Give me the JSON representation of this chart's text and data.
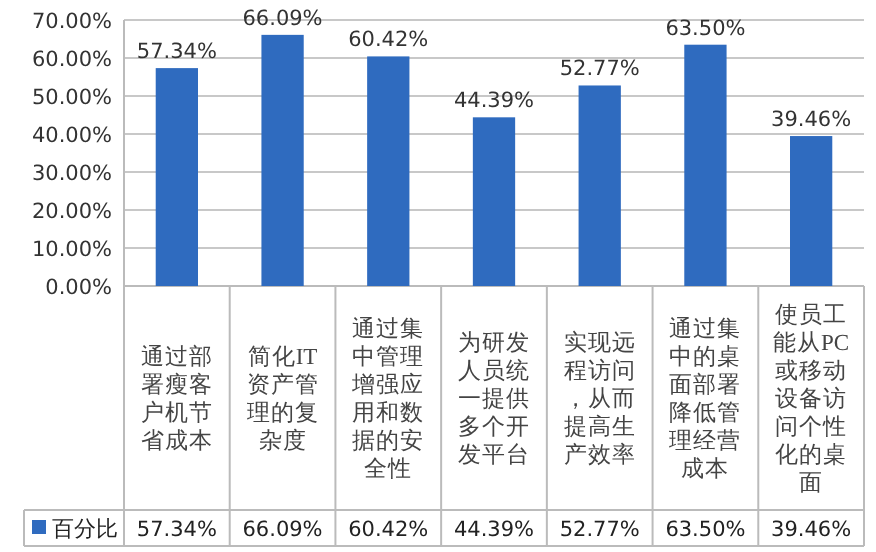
{
  "chart_data": {
    "type": "bar",
    "categories": [
      "通过部署瘦客户机节省成本",
      "简化IT资产管理的复杂度",
      "通过集中管理增强应用和数据的安全性",
      "为研发人员统一提供多个开发平台",
      "实现远程访问，从而提高生产效率",
      "通过集中的桌面部署降低管理经营成本",
      "使员工能从PC或移动设备访问个性化的桌面"
    ],
    "series": [
      {
        "name": "百分比",
        "color": "#2f6bbf",
        "values": [
          57.34,
          66.09,
          60.42,
          44.39,
          52.77,
          63.5,
          39.46
        ],
        "value_labels": [
          "57.34%",
          "66.09%",
          "60.42%",
          "44.39%",
          "52.77%",
          "63.50%",
          "39.46%"
        ]
      }
    ],
    "ylim": [
      0,
      70
    ],
    "yticks": [
      {
        "value": 0,
        "label": "0.00%"
      },
      {
        "value": 10,
        "label": "10.00%"
      },
      {
        "value": 20,
        "label": "20.00%"
      },
      {
        "value": 30,
        "label": "30.00%"
      },
      {
        "value": 40,
        "label": "40.00%"
      },
      {
        "value": 50,
        "label": "50.00%"
      },
      {
        "value": 60,
        "label": "60.00%"
      },
      {
        "value": 70,
        "label": "70.00%"
      }
    ],
    "grid": "y",
    "legend": "bottom"
  }
}
